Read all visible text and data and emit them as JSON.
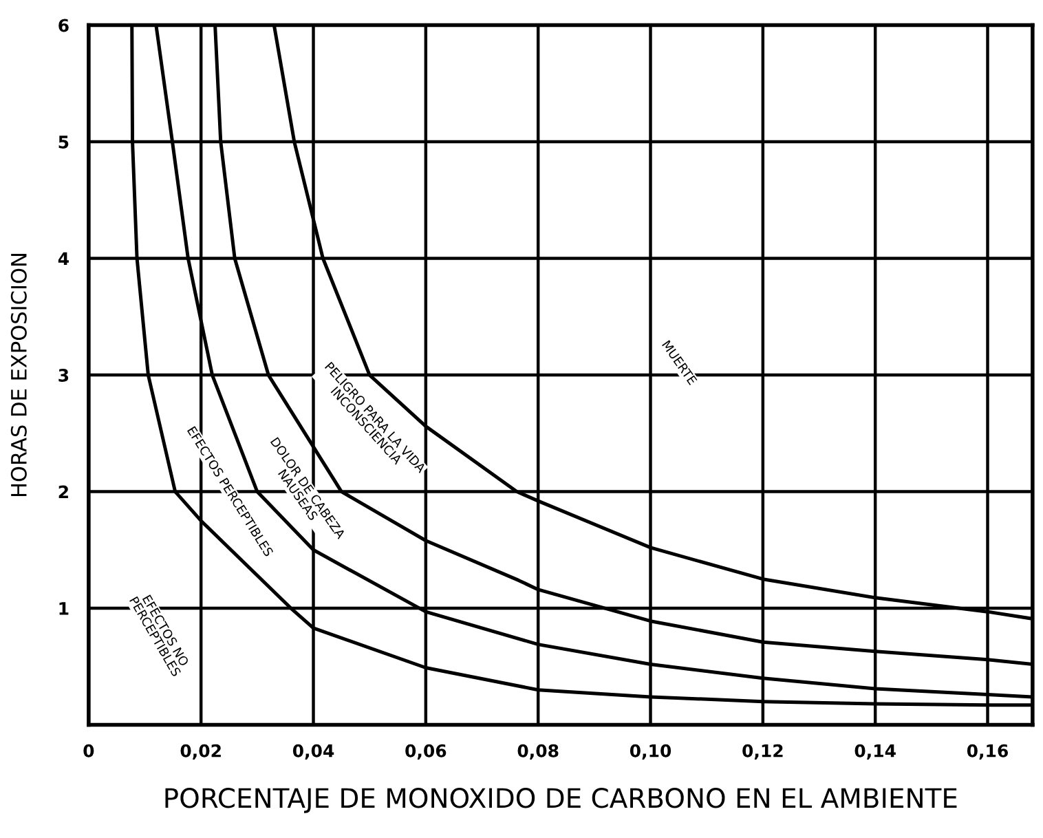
{
  "chart_data": {
    "type": "line",
    "xlabel": "PORCENTAJE DE MONOXIDO DE CARBONO EN EL AMBIENTE",
    "ylabel": "HORAS DE EXPOSICION",
    "xlim": [
      0,
      0.168
    ],
    "ylim": [
      0,
      6
    ],
    "xticks": [
      0,
      {
        "value": 0.02,
        "label": "0,02"
      },
      {
        "value": 0.04,
        "label": "0,04"
      },
      {
        "value": 0.06,
        "label": "0,06"
      },
      {
        "value": 0.08,
        "label": "0,08"
      },
      {
        "value": 0.1,
        "label": "0,10"
      },
      {
        "value": 0.12,
        "label": "0,12"
      },
      {
        "value": 0.14,
        "label": "0,14"
      },
      {
        "value": 0.16,
        "label": "0,16"
      }
    ],
    "yticks": [
      1,
      2,
      3,
      4,
      5,
      6
    ],
    "grid": true,
    "marker": "none",
    "line_style": "solid",
    "series": [
      {
        "color": "#000000",
        "x": [
          0.0077,
          0.0078,
          0.0086,
          0.0106,
          0.0154,
          0.02,
          0.036,
          0.04,
          0.06,
          0.08,
          0.1,
          0.12,
          0.14,
          0.16,
          0.168
        ],
        "values": [
          6,
          5,
          4,
          3,
          2,
          1.75,
          1,
          0.83,
          0.49,
          0.3,
          0.24,
          0.2,
          0.18,
          0.17,
          0.17
        ]
      },
      {
        "color": "#000000",
        "x": [
          0.012,
          0.0149,
          0.0177,
          0.022,
          0.03,
          0.04,
          0.06,
          0.08,
          0.1,
          0.12,
          0.14,
          0.16,
          0.168
        ],
        "values": [
          6,
          5,
          4,
          3,
          2,
          1.5,
          0.97,
          0.69,
          0.52,
          0.4,
          0.31,
          0.26,
          0.24
        ]
      },
      {
        "color": "#000000",
        "x": [
          0.0225,
          0.0235,
          0.026,
          0.032,
          0.045,
          0.06,
          0.0765,
          0.08,
          0.1,
          0.12,
          0.14,
          0.16,
          0.168
        ],
        "values": [
          6,
          5,
          4,
          3,
          2,
          1.58,
          1.24,
          1.16,
          0.89,
          0.71,
          0.63,
          0.56,
          0.52
        ]
      },
      {
        "color": "#000000",
        "x": [
          0.033,
          0.0366,
          0.0417,
          0.05,
          0.06,
          0.0762,
          0.08,
          0.1,
          0.12,
          0.14,
          0.16,
          0.168
        ],
        "values": [
          6,
          5,
          4,
          3,
          2.56,
          2,
          1.92,
          1.52,
          1.25,
          1.09,
          0.97,
          0.91
        ]
      }
    ],
    "annotations": [
      "EFECTOS NO\nPERCEPTIBLES",
      "EFECTOS PERCEPTIBLES",
      "DOLOR DE CABEZA\nNAUSEAS",
      "PELIGRO PARA LA VIDA\nINCONSCIENCIA",
      "MUERTE"
    ]
  }
}
